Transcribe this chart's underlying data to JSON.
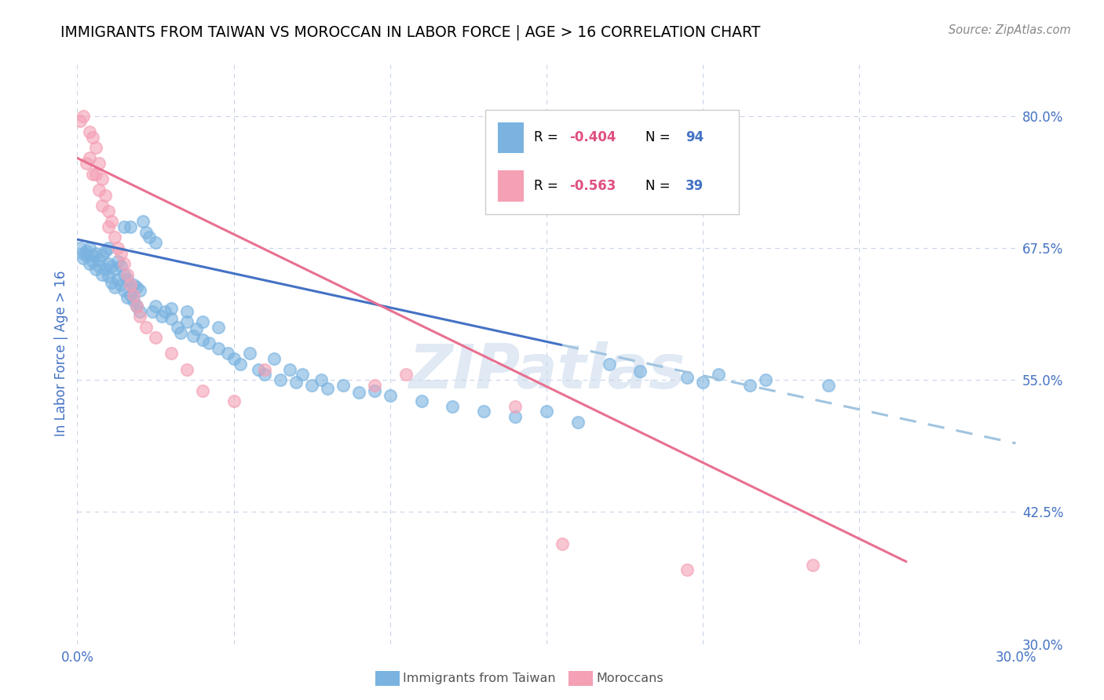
{
  "title": "IMMIGRANTS FROM TAIWAN VS MOROCCAN IN LABOR FORCE | AGE > 16 CORRELATION CHART",
  "source": "Source: ZipAtlas.com",
  "ylabel": "In Labor Force | Age > 16",
  "xlim": [
    0.0,
    0.3
  ],
  "ylim": [
    0.3,
    0.85
  ],
  "x_ticks": [
    0.0,
    0.05,
    0.1,
    0.15,
    0.2,
    0.25,
    0.3
  ],
  "x_tick_labels": [
    "0.0%",
    "",
    "",
    "",
    "",
    "",
    "30.0%"
  ],
  "y_ticks_right": [
    0.8,
    0.675,
    0.55,
    0.425,
    0.3
  ],
  "y_tick_labels_right": [
    "80.0%",
    "67.5%",
    "55.0%",
    "42.5%",
    "30.0%"
  ],
  "taiwan_color": "#7ab3e0",
  "moroccan_color": "#f4a0b5",
  "legend_R_color": "#e05080",
  "legend_N_color": "#4472c4",
  "taiwan_line_color": "#4472c4",
  "moroccan_line_color": "#e87090",
  "taiwan_line_dashed_color": "#a0c4e0",
  "background_color": "#ffffff",
  "grid_color": "#c8d4e8",
  "taiwan_R": -0.404,
  "taiwan_N": 94,
  "moroccan_R": -0.563,
  "moroccan_N": 39,
  "taiwan_scatter": [
    [
      0.001,
      0.675
    ],
    [
      0.002,
      0.67
    ],
    [
      0.002,
      0.665
    ],
    [
      0.003,
      0.668
    ],
    [
      0.003,
      0.672
    ],
    [
      0.004,
      0.66
    ],
    [
      0.004,
      0.675
    ],
    [
      0.005,
      0.662
    ],
    [
      0.005,
      0.668
    ],
    [
      0.006,
      0.655
    ],
    [
      0.006,
      0.67
    ],
    [
      0.007,
      0.658
    ],
    [
      0.007,
      0.664
    ],
    [
      0.008,
      0.65
    ],
    [
      0.008,
      0.668
    ],
    [
      0.009,
      0.655
    ],
    [
      0.009,
      0.672
    ],
    [
      0.01,
      0.648
    ],
    [
      0.01,
      0.66
    ],
    [
      0.01,
      0.675
    ],
    [
      0.011,
      0.642
    ],
    [
      0.011,
      0.658
    ],
    [
      0.012,
      0.638
    ],
    [
      0.012,
      0.655
    ],
    [
      0.013,
      0.645
    ],
    [
      0.013,
      0.662
    ],
    [
      0.014,
      0.64
    ],
    [
      0.014,
      0.658
    ],
    [
      0.015,
      0.635
    ],
    [
      0.015,
      0.65
    ],
    [
      0.015,
      0.695
    ],
    [
      0.016,
      0.628
    ],
    [
      0.016,
      0.645
    ],
    [
      0.017,
      0.63
    ],
    [
      0.017,
      0.695
    ],
    [
      0.018,
      0.625
    ],
    [
      0.018,
      0.64
    ],
    [
      0.019,
      0.62
    ],
    [
      0.019,
      0.638
    ],
    [
      0.02,
      0.615
    ],
    [
      0.02,
      0.635
    ],
    [
      0.021,
      0.7
    ],
    [
      0.022,
      0.69
    ],
    [
      0.023,
      0.685
    ],
    [
      0.024,
      0.615
    ],
    [
      0.025,
      0.62
    ],
    [
      0.025,
      0.68
    ],
    [
      0.027,
      0.61
    ],
    [
      0.028,
      0.615
    ],
    [
      0.03,
      0.608
    ],
    [
      0.03,
      0.618
    ],
    [
      0.032,
      0.6
    ],
    [
      0.033,
      0.595
    ],
    [
      0.035,
      0.605
    ],
    [
      0.035,
      0.615
    ],
    [
      0.037,
      0.592
    ],
    [
      0.038,
      0.598
    ],
    [
      0.04,
      0.588
    ],
    [
      0.04,
      0.605
    ],
    [
      0.042,
      0.585
    ],
    [
      0.045,
      0.58
    ],
    [
      0.045,
      0.6
    ],
    [
      0.048,
      0.575
    ],
    [
      0.05,
      0.57
    ],
    [
      0.052,
      0.565
    ],
    [
      0.055,
      0.575
    ],
    [
      0.058,
      0.56
    ],
    [
      0.06,
      0.555
    ],
    [
      0.063,
      0.57
    ],
    [
      0.065,
      0.55
    ],
    [
      0.068,
      0.56
    ],
    [
      0.07,
      0.548
    ],
    [
      0.072,
      0.555
    ],
    [
      0.075,
      0.545
    ],
    [
      0.078,
      0.55
    ],
    [
      0.08,
      0.542
    ],
    [
      0.085,
      0.545
    ],
    [
      0.09,
      0.538
    ],
    [
      0.095,
      0.54
    ],
    [
      0.1,
      0.535
    ],
    [
      0.11,
      0.53
    ],
    [
      0.12,
      0.525
    ],
    [
      0.13,
      0.52
    ],
    [
      0.14,
      0.515
    ],
    [
      0.15,
      0.52
    ],
    [
      0.16,
      0.51
    ],
    [
      0.17,
      0.565
    ],
    [
      0.18,
      0.558
    ],
    [
      0.195,
      0.552
    ],
    [
      0.2,
      0.548
    ],
    [
      0.205,
      0.555
    ],
    [
      0.215,
      0.545
    ],
    [
      0.22,
      0.55
    ],
    [
      0.24,
      0.545
    ]
  ],
  "moroccan_scatter": [
    [
      0.001,
      0.795
    ],
    [
      0.002,
      0.8
    ],
    [
      0.003,
      0.755
    ],
    [
      0.004,
      0.785
    ],
    [
      0.004,
      0.76
    ],
    [
      0.005,
      0.78
    ],
    [
      0.005,
      0.745
    ],
    [
      0.006,
      0.77
    ],
    [
      0.006,
      0.745
    ],
    [
      0.007,
      0.755
    ],
    [
      0.007,
      0.73
    ],
    [
      0.008,
      0.74
    ],
    [
      0.008,
      0.715
    ],
    [
      0.009,
      0.725
    ],
    [
      0.01,
      0.71
    ],
    [
      0.01,
      0.695
    ],
    [
      0.011,
      0.7
    ],
    [
      0.012,
      0.685
    ],
    [
      0.013,
      0.675
    ],
    [
      0.014,
      0.67
    ],
    [
      0.015,
      0.66
    ],
    [
      0.016,
      0.65
    ],
    [
      0.017,
      0.64
    ],
    [
      0.018,
      0.63
    ],
    [
      0.019,
      0.62
    ],
    [
      0.02,
      0.61
    ],
    [
      0.022,
      0.6
    ],
    [
      0.025,
      0.59
    ],
    [
      0.03,
      0.575
    ],
    [
      0.035,
      0.56
    ],
    [
      0.04,
      0.54
    ],
    [
      0.05,
      0.53
    ],
    [
      0.06,
      0.56
    ],
    [
      0.095,
      0.545
    ],
    [
      0.105,
      0.555
    ],
    [
      0.14,
      0.525
    ],
    [
      0.155,
      0.395
    ],
    [
      0.195,
      0.37
    ],
    [
      0.235,
      0.375
    ]
  ],
  "taiwan_trendline_solid": [
    [
      0.0,
      0.683
    ],
    [
      0.155,
      0.583
    ]
  ],
  "taiwan_trendline_dashed": [
    [
      0.155,
      0.583
    ],
    [
      0.3,
      0.49
    ]
  ],
  "moroccan_trendline": [
    [
      0.0,
      0.76
    ],
    [
      0.265,
      0.378
    ]
  ]
}
